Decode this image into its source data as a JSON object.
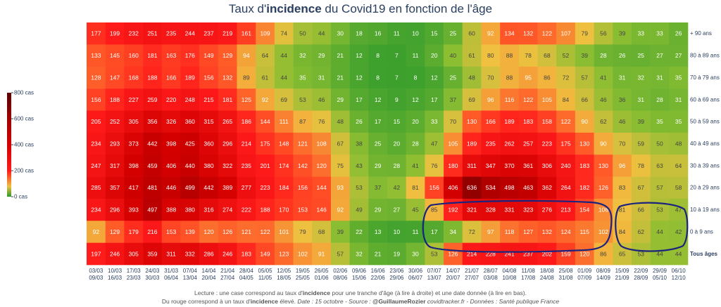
{
  "title": {
    "prefix": "Taux d'",
    "bold": "incidence",
    "suffix": " du Covid19 en fonction de l'âge"
  },
  "caption": {
    "line1_prefix": "Lecture : une case correspond au taux d'",
    "line1_bold": "incidence",
    "line1_suffix": " pour une tranche d'âge (à lire à droite) et une date donnée (à lire en bas).",
    "line2_prefix": "Du rouge correspond à un taux d'",
    "line2_bold": "incidence",
    "line2_mid": " élevé. ",
    "line2_italic_a": " Date : 15 octobre - Source : ",
    "line2_bold_b": "@GuillaumeRozier",
    "line2_italic_c": " covidtracker.fr - Données : Santé publique France"
  },
  "colors": {
    "high": "#5a0000",
    "mid_high": "#b50000",
    "mid": "#ff1a1a",
    "low_mid": "#f0c040",
    "low": "#2c9a2c",
    "annotation": "#1a237e"
  },
  "chart_data": {
    "type": "heatmap",
    "colorscale_label_max": "800 cas",
    "colorbar_ticks": [
      "800 cas",
      "600 cas",
      "400 cas",
      "200 cas",
      "0 cas"
    ],
    "colorbar_tick_values": [
      800,
      600,
      400,
      200,
      0
    ],
    "zlim": [
      0,
      800
    ],
    "rows": [
      "+ 90 ans",
      "80 à 89 ans",
      "70 à 79 ans",
      "60 à 69 ans",
      "50 à 59 ans",
      "40 à 49 ans",
      "30 à 39 ans",
      "20 à 29 ans",
      "10 à 19 ans",
      "0 à 9 ans",
      "Tous âges"
    ],
    "columns_top": [
      "03/03",
      "10/03",
      "17/03",
      "24/03",
      "31/03",
      "07/04",
      "14/04",
      "21/04",
      "28/04",
      "05/05",
      "12/05",
      "19/05",
      "26/05",
      "02/06",
      "09/06",
      "16/06",
      "23/06",
      "30/06",
      "07/07",
      "14/07",
      "21/07",
      "28/07",
      "04/08",
      "11/08",
      "18/08",
      "25/08",
      "01/09",
      "08/09",
      "15/09",
      "22/09",
      "29/09",
      "06/10"
    ],
    "columns_bottom": [
      "09/03",
      "16/03",
      "23/03",
      "30/03",
      "06/04",
      "13/04",
      "20/04",
      "27/04",
      "04/05",
      "11/05",
      "18/05",
      "25/05",
      "01/06",
      "08/06",
      "15/06",
      "22/06",
      "29/06",
      "06/07",
      "13/07",
      "20/07",
      "27/07",
      "03/08",
      "10/08",
      "17/08",
      "24/08",
      "31/08",
      "07/09",
      "14/09",
      "21/09",
      "28/09",
      "05/10",
      "12/10"
    ],
    "values": [
      [
        177,
        199,
        232,
        251,
        235,
        244,
        237,
        219,
        161,
        109,
        74,
        50,
        44,
        30,
        18,
        16,
        11,
        10,
        15,
        25,
        60,
        92,
        134,
        132,
        122,
        107,
        79,
        56,
        39,
        33,
        33,
        26
      ],
      [
        133,
        145,
        160,
        181,
        163,
        176,
        149,
        129,
        94,
        64,
        44,
        32,
        29,
        21,
        12,
        8,
        7,
        11,
        20,
        40,
        61,
        80,
        88,
        78,
        68,
        52,
        39,
        28,
        26,
        25,
        27,
        27
      ],
      [
        128,
        147,
        168,
        188,
        166,
        189,
        156,
        132,
        89,
        61,
        44,
        35,
        31,
        21,
        12,
        8,
        7,
        8,
        12,
        25,
        48,
        70,
        88,
        95,
        86,
        72,
        57,
        41,
        31,
        32,
        31,
        35
      ],
      [
        156,
        188,
        227,
        259,
        220,
        248,
        215,
        181,
        125,
        92,
        69,
        53,
        46,
        29,
        17,
        12,
        9,
        12,
        17,
        37,
        69,
        96,
        116,
        122,
        105,
        84,
        66,
        46,
        36,
        31,
        28,
        31
      ],
      [
        205,
        252,
        305,
        356,
        326,
        360,
        315,
        265,
        186,
        144,
        111,
        87,
        76,
        48,
        26,
        17,
        15,
        20,
        33,
        70,
        130,
        166,
        189,
        183,
        158,
        122,
        90,
        62,
        46,
        39,
        35,
        35
      ],
      [
        234,
        293,
        373,
        442,
        398,
        425,
        360,
        296,
        214,
        175,
        148,
        121,
        108,
        67,
        38,
        25,
        20,
        28,
        47,
        105,
        189,
        235,
        262,
        257,
        223,
        175,
        130,
        90,
        70,
        59,
        50,
        48
      ],
      [
        247,
        317,
        398,
        459,
        406,
        440,
        380,
        322,
        235,
        201,
        174,
        142,
        120,
        75,
        43,
        29,
        28,
        41,
        76,
        180,
        311,
        347,
        370,
        361,
        306,
        240,
        183,
        130,
        96,
        78,
        63,
        64
      ],
      [
        285,
        357,
        417,
        481,
        446,
        499,
        442,
        389,
        277,
        223,
        184,
        156,
        144,
        93,
        53,
        37,
        42,
        81,
        156,
        406,
        636,
        534,
        498,
        463,
        362,
        264,
        182,
        126,
        83,
        67,
        57,
        58
      ],
      [
        234,
        296,
        393,
        497,
        388,
        380,
        316,
        274,
        222,
        188,
        170,
        153,
        146,
        92,
        49,
        29,
        27,
        45,
        85,
        192,
        321,
        328,
        331,
        323,
        276,
        213,
        154,
        106,
        81,
        66,
        53,
        47
      ],
      [
        92,
        129,
        179,
        216,
        153,
        139,
        120,
        126,
        121,
        122,
        101,
        79,
        68,
        39,
        22,
        13,
        10,
        11,
        17,
        34,
        72,
        97,
        118,
        127,
        132,
        124,
        115,
        102,
        84,
        62,
        44,
        42
      ],
      [
        197,
        246,
        305,
        359,
        311,
        332,
        286,
        246,
        183,
        149,
        123,
        102,
        91,
        57,
        32,
        21,
        19,
        30,
        53,
        126,
        214,
        228,
        241,
        237,
        202,
        159,
        120,
        86,
        65,
        53,
        44,
        44
      ]
    ]
  }
}
